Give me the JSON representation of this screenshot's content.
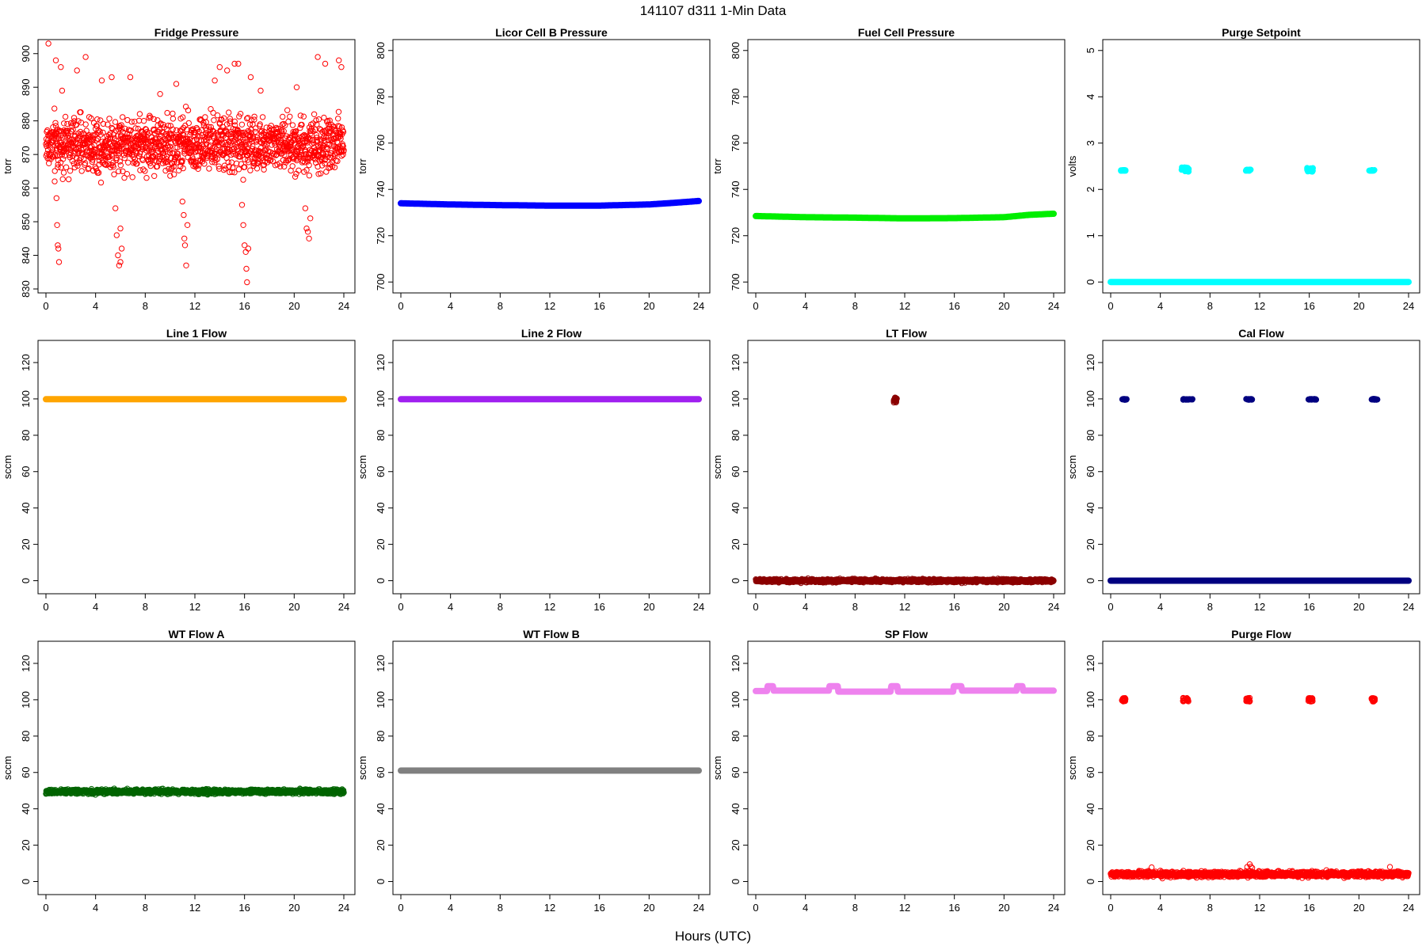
{
  "figure": {
    "title": "141107   d311   1-Min Data",
    "xlabel": "Hours (UTC)"
  },
  "chart_data": [
    {
      "type": "scatter",
      "title": "Fridge Pressure",
      "ylabel": "torr",
      "xlim": [
        0,
        24
      ],
      "ylim": [
        830,
        903
      ],
      "xticks": [
        0,
        4,
        8,
        12,
        16,
        20,
        24
      ],
      "yticks": [
        830,
        840,
        850,
        860,
        870,
        880,
        890,
        900
      ],
      "series": [
        {
          "color": "#ff0000",
          "marker": "open-circle",
          "pattern": "noise",
          "n": 1440,
          "base": 873,
          "spread": 28,
          "points": [
            [
              0.2,
              903
            ],
            [
              0.8,
              898
            ],
            [
              1.2,
              896
            ],
            [
              1.3,
              889
            ],
            [
              2.5,
              895
            ],
            [
              3.2,
              899
            ],
            [
              4.5,
              892
            ],
            [
              5.3,
              893
            ],
            [
              6.8,
              893
            ],
            [
              9.2,
              888
            ],
            [
              10.5,
              891
            ],
            [
              13.6,
              892
            ],
            [
              14.0,
              896
            ],
            [
              14.6,
              895
            ],
            [
              15.2,
              897
            ],
            [
              15.5,
              897
            ],
            [
              16.5,
              893
            ],
            [
              17.3,
              889
            ],
            [
              20.2,
              890
            ],
            [
              21.9,
              899
            ],
            [
              22.5,
              897
            ],
            [
              23.6,
              898
            ],
            [
              23.8,
              896
            ],
            [
              0.7,
              862
            ],
            [
              0.85,
              857
            ],
            [
              0.9,
              849
            ],
            [
              0.95,
              843
            ],
            [
              1.0,
              842
            ],
            [
              1.05,
              838
            ],
            [
              5.6,
              854
            ],
            [
              5.7,
              846
            ],
            [
              5.8,
              840
            ],
            [
              5.9,
              837
            ],
            [
              6.0,
              838
            ],
            [
              6.1,
              842
            ],
            [
              6.0,
              848
            ],
            [
              11.0,
              856
            ],
            [
              11.1,
              852
            ],
            [
              11.15,
              845
            ],
            [
              11.2,
              843
            ],
            [
              11.3,
              837
            ],
            [
              11.4,
              849
            ],
            [
              15.8,
              855
            ],
            [
              15.9,
              849
            ],
            [
              16.0,
              843
            ],
            [
              16.1,
              841
            ],
            [
              16.15,
              836
            ],
            [
              16.2,
              832
            ],
            [
              16.3,
              842
            ],
            [
              20.9,
              854
            ],
            [
              21.0,
              848
            ],
            [
              21.1,
              847
            ],
            [
              21.2,
              845
            ],
            [
              21.3,
              851
            ]
          ]
        }
      ]
    },
    {
      "type": "scatter",
      "title": "Licor Cell B Pressure",
      "ylabel": "torr",
      "xlim": [
        0,
        24
      ],
      "ylim": [
        697,
        803
      ],
      "xticks": [
        0,
        4,
        8,
        12,
        16,
        20,
        24
      ],
      "yticks": [
        700,
        720,
        740,
        760,
        780,
        800
      ],
      "series": [
        {
          "color": "#0000ff",
          "marker": "filled-band",
          "line": [
            [
              0,
              734
            ],
            [
              4,
              733.5
            ],
            [
              8,
              733.2
            ],
            [
              12,
              733
            ],
            [
              16,
              733
            ],
            [
              20,
              733.5
            ],
            [
              22,
              734.2
            ],
            [
              24,
              735
            ]
          ]
        }
      ]
    },
    {
      "type": "scatter",
      "title": "Fuel Cell Pressure",
      "ylabel": "torr",
      "xlim": [
        0,
        24
      ],
      "ylim": [
        697,
        803
      ],
      "xticks": [
        0,
        4,
        8,
        12,
        16,
        20,
        24
      ],
      "yticks": [
        700,
        720,
        740,
        760,
        780,
        800
      ],
      "series": [
        {
          "color": "#00ee00",
          "marker": "filled-band",
          "line": [
            [
              0,
              728.5
            ],
            [
              4,
              728
            ],
            [
              8,
              727.8
            ],
            [
              12,
              727.5
            ],
            [
              16,
              727.6
            ],
            [
              20,
              728
            ],
            [
              22,
              729
            ],
            [
              24,
              729.5
            ]
          ]
        }
      ]
    },
    {
      "type": "scatter",
      "title": "Purge Setpoint",
      "ylabel": "volts",
      "xlim": [
        0,
        24
      ],
      "ylim": [
        -0.15,
        5.15
      ],
      "xticks": [
        0,
        4,
        8,
        12,
        16,
        20,
        24
      ],
      "yticks": [
        0,
        1,
        2,
        3,
        4,
        5
      ],
      "series": [
        {
          "color": "#00ffff",
          "marker": "filled-band",
          "line": [
            [
              0,
              0
            ],
            [
              24,
              0
            ]
          ],
          "clusters": [
            [
              0.8,
              1.2,
              2.4,
              2.42
            ],
            [
              5.7,
              6.3,
              2.38,
              2.48
            ],
            [
              10.8,
              11.3,
              2.4,
              2.43
            ],
            [
              15.8,
              16.3,
              2.38,
              2.47
            ],
            [
              20.8,
              21.3,
              2.4,
              2.42
            ]
          ]
        }
      ]
    },
    {
      "type": "scatter",
      "title": "Line 1 Flow",
      "ylabel": "sccm",
      "xlim": [
        0,
        24
      ],
      "ylim": [
        -5,
        130
      ],
      "xticks": [
        0,
        4,
        8,
        12,
        16,
        20,
        24
      ],
      "yticks": [
        0,
        20,
        40,
        60,
        80,
        100,
        120
      ],
      "series": [
        {
          "color": "#ffa500",
          "marker": "filled-band",
          "line": [
            [
              0,
              99.8
            ],
            [
              24,
              99.8
            ]
          ]
        }
      ]
    },
    {
      "type": "scatter",
      "title": "Line 2 Flow",
      "ylabel": "sccm",
      "xlim": [
        0,
        24
      ],
      "ylim": [
        -5,
        130
      ],
      "xticks": [
        0,
        4,
        8,
        12,
        16,
        20,
        24
      ],
      "yticks": [
        0,
        20,
        40,
        60,
        80,
        100,
        120
      ],
      "series": [
        {
          "color": "#a020f0",
          "marker": "filled-band",
          "line": [
            [
              0,
              99.8
            ],
            [
              24,
              99.8
            ]
          ]
        }
      ]
    },
    {
      "type": "scatter",
      "title": "LT Flow",
      "ylabel": "sccm",
      "xlim": [
        0,
        24
      ],
      "ylim": [
        -5,
        130
      ],
      "xticks": [
        0,
        4,
        8,
        12,
        16,
        20,
        24
      ],
      "yticks": [
        0,
        20,
        40,
        60,
        80,
        100,
        120
      ],
      "series": [
        {
          "color": "#8b0000",
          "marker": "noise-band",
          "pattern": "noise",
          "n": 1440,
          "base": 0,
          "spread": 3,
          "clusters": [
            [
              11.1,
              11.4,
              98,
              101
            ]
          ]
        }
      ]
    },
    {
      "type": "scatter",
      "title": "Cal Flow",
      "ylabel": "sccm",
      "xlim": [
        0,
        24
      ],
      "ylim": [
        -5,
        130
      ],
      "xticks": [
        0,
        4,
        8,
        12,
        16,
        20,
        24
      ],
      "yticks": [
        0,
        20,
        40,
        60,
        80,
        100,
        120
      ],
      "series": [
        {
          "color": "#000080",
          "marker": "filled-band",
          "line": [
            [
              0,
              0
            ],
            [
              24,
              0
            ]
          ],
          "clusters": [
            [
              0.9,
              1.3,
              99.5,
              100
            ],
            [
              5.8,
              6.6,
              99.5,
              100
            ],
            [
              10.9,
              11.4,
              99.5,
              100
            ],
            [
              15.9,
              16.6,
              99.5,
              100
            ],
            [
              21.0,
              21.5,
              99.5,
              100
            ]
          ]
        }
      ]
    },
    {
      "type": "scatter",
      "title": "WT Flow A",
      "ylabel": "sccm",
      "xlim": [
        0,
        24
      ],
      "ylim": [
        -5,
        130
      ],
      "xticks": [
        0,
        4,
        8,
        12,
        16,
        20,
        24
      ],
      "yticks": [
        0,
        20,
        40,
        60,
        80,
        100,
        120
      ],
      "series": [
        {
          "color": "#006400",
          "marker": "noise-band",
          "pattern": "noise",
          "n": 1440,
          "base": 49.5,
          "spread": 4
        }
      ]
    },
    {
      "type": "scatter",
      "title": "WT Flow B",
      "ylabel": "sccm",
      "xlim": [
        0,
        24
      ],
      "ylim": [
        -5,
        130
      ],
      "xticks": [
        0,
        4,
        8,
        12,
        16,
        20,
        24
      ],
      "yticks": [
        0,
        20,
        40,
        60,
        80,
        100,
        120
      ],
      "series": [
        {
          "color": "#808080",
          "marker": "filled-band",
          "line": [
            [
              0,
              61
            ],
            [
              24,
              61
            ]
          ]
        }
      ]
    },
    {
      "type": "scatter",
      "title": "SP Flow",
      "ylabel": "sccm",
      "xlim": [
        0,
        24
      ],
      "ylim": [
        -5,
        130
      ],
      "xticks": [
        0,
        4,
        8,
        12,
        16,
        20,
        24
      ],
      "yticks": [
        0,
        20,
        40,
        60,
        80,
        100,
        120
      ],
      "series": [
        {
          "color": "#ee82ee",
          "marker": "filled-band",
          "line": [
            [
              0,
              104.8
            ],
            [
              0.9,
              104.8
            ],
            [
              0.9,
              107.5
            ],
            [
              1.4,
              107.5
            ],
            [
              1.4,
              105
            ],
            [
              5.9,
              105
            ],
            [
              5.9,
              107.5
            ],
            [
              6.6,
              107.5
            ],
            [
              6.6,
              104.5
            ],
            [
              10.9,
              104.5
            ],
            [
              10.9,
              107.5
            ],
            [
              11.4,
              107.5
            ],
            [
              11.4,
              104.5
            ],
            [
              15.9,
              104.5
            ],
            [
              15.9,
              107.5
            ],
            [
              16.6,
              107.5
            ],
            [
              16.6,
              105
            ],
            [
              21.0,
              105
            ],
            [
              21.0,
              107.5
            ],
            [
              21.5,
              107.5
            ],
            [
              21.5,
              105
            ],
            [
              24,
              105
            ]
          ]
        }
      ]
    },
    {
      "type": "scatter",
      "title": "Purge Flow",
      "ylabel": "sccm",
      "xlim": [
        0,
        24
      ],
      "ylim": [
        -5,
        130
      ],
      "xticks": [
        0,
        4,
        8,
        12,
        16,
        20,
        24
      ],
      "yticks": [
        0,
        20,
        40,
        60,
        80,
        100,
        120
      ],
      "series": [
        {
          "color": "#ff0000",
          "marker": "noise-band",
          "pattern": "noise",
          "n": 1440,
          "base": 4,
          "spread": 5,
          "clusters": [
            [
              0.9,
              1.2,
              99,
              101
            ],
            [
              5.8,
              6.3,
              99,
              101
            ],
            [
              10.9,
              11.3,
              99,
              101
            ],
            [
              15.9,
              16.3,
              99,
              101
            ],
            [
              21.0,
              21.3,
              99,
              101
            ]
          ],
          "points": [
            [
              11.2,
              9.5
            ],
            [
              11.3,
              8.2
            ],
            [
              11.4,
              7.5
            ],
            [
              11.0,
              8.0
            ],
            [
              22.5,
              8.0
            ],
            [
              3.3,
              7.8
            ]
          ]
        }
      ]
    }
  ]
}
